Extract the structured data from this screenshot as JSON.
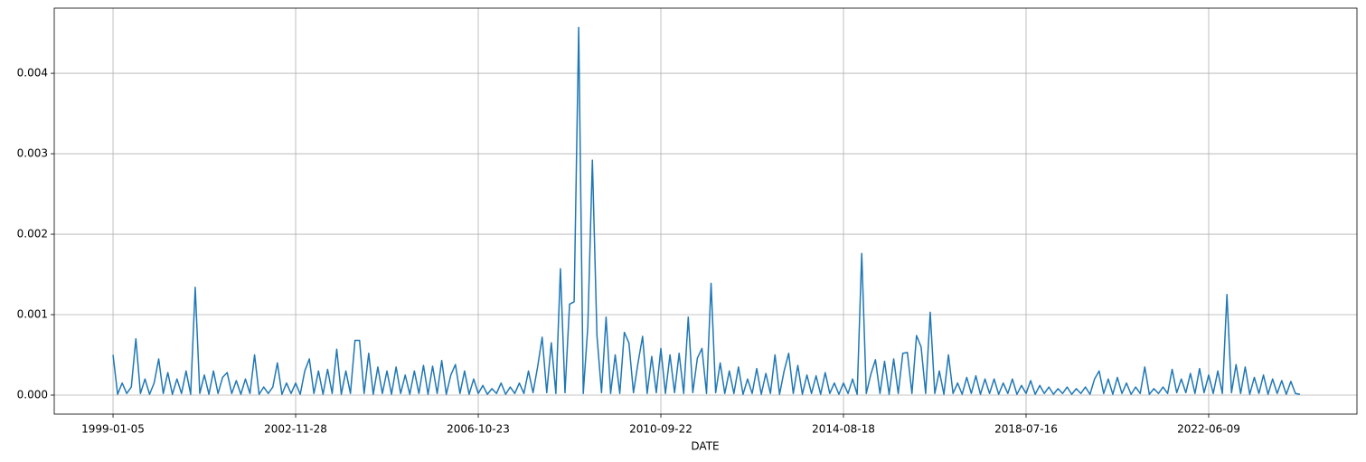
{
  "chart_data": {
    "type": "line",
    "xlabel": "DATE",
    "grid": true,
    "xlim": [
      -322,
      6812
    ],
    "ylim": [
      -0.000236,
      0.00481
    ],
    "xticks": [
      {
        "value": 0,
        "label": "1999-01-05"
      },
      {
        "value": 1000,
        "label": "2002-11-28"
      },
      {
        "value": 2000,
        "label": "2006-10-23"
      },
      {
        "value": 3000,
        "label": "2010-09-22"
      },
      {
        "value": 4000,
        "label": "2014-08-18"
      },
      {
        "value": 5000,
        "label": "2018-07-16"
      },
      {
        "value": 6000,
        "label": "2022-06-09"
      }
    ],
    "yticks": [
      {
        "value": 0,
        "label": "0.000"
      },
      {
        "value": 0.001,
        "label": "0.001"
      },
      {
        "value": 0.002,
        "label": "0.002"
      },
      {
        "value": 0.003,
        "label": "0.003"
      },
      {
        "value": 0.004,
        "label": "0.004"
      }
    ],
    "series": [
      {
        "color": "#1f77b4",
        "x": [
          0,
          25,
          50,
          75,
          100,
          125,
          150,
          175,
          200,
          225,
          250,
          275,
          300,
          325,
          350,
          375,
          400,
          425,
          450,
          475,
          500,
          525,
          550,
          575,
          600,
          625,
          650,
          675,
          700,
          725,
          750,
          775,
          800,
          825,
          850,
          875,
          900,
          925,
          950,
          975,
          1000,
          1025,
          1050,
          1075,
          1100,
          1125,
          1150,
          1175,
          1200,
          1225,
          1250,
          1275,
          1300,
          1325,
          1350,
          1375,
          1400,
          1425,
          1450,
          1475,
          1500,
          1525,
          1550,
          1575,
          1600,
          1625,
          1650,
          1675,
          1700,
          1725,
          1750,
          1775,
          1800,
          1825,
          1850,
          1875,
          1900,
          1925,
          1950,
          1975,
          2000,
          2025,
          2050,
          2075,
          2100,
          2125,
          2150,
          2175,
          2200,
          2225,
          2250,
          2275,
          2300,
          2325,
          2350,
          2375,
          2400,
          2425,
          2450,
          2475,
          2500,
          2525,
          2550,
          2575,
          2600,
          2625,
          2650,
          2675,
          2700,
          2725,
          2750,
          2775,
          2800,
          2825,
          2850,
          2875,
          2900,
          2925,
          2950,
          2975,
          3000,
          3025,
          3050,
          3075,
          3100,
          3125,
          3150,
          3175,
          3200,
          3225,
          3250,
          3275,
          3300,
          3325,
          3350,
          3375,
          3400,
          3425,
          3450,
          3475,
          3500,
          3525,
          3550,
          3575,
          3600,
          3625,
          3650,
          3675,
          3700,
          3725,
          3750,
          3775,
          3800,
          3825,
          3850,
          3875,
          3900,
          3925,
          3950,
          3975,
          4000,
          4025,
          4050,
          4075,
          4100,
          4125,
          4150,
          4175,
          4200,
          4225,
          4250,
          4275,
          4300,
          4325,
          4350,
          4375,
          4400,
          4425,
          4450,
          4475,
          4500,
          4525,
          4550,
          4575,
          4600,
          4625,
          4650,
          4675,
          4700,
          4725,
          4750,
          4775,
          4800,
          4825,
          4850,
          4875,
          4900,
          4925,
          4950,
          4975,
          5000,
          5025,
          5050,
          5075,
          5100,
          5125,
          5150,
          5175,
          5200,
          5225,
          5250,
          5275,
          5300,
          5325,
          5350,
          5375,
          5400,
          5425,
          5450,
          5475,
          5500,
          5525,
          5550,
          5575,
          5600,
          5625,
          5650,
          5675,
          5700,
          5725,
          5750,
          5775,
          5800,
          5825,
          5850,
          5875,
          5900,
          5925,
          5950,
          5975,
          6000,
          6025,
          6050,
          6075,
          6100,
          6125,
          6150,
          6175,
          6200,
          6225,
          6250,
          6275,
          6300,
          6325,
          6350,
          6375,
          6400,
          6425,
          6450,
          6475,
          6500
        ],
        "values": [
          0.0005,
          1e-05,
          0.00015,
          2e-05,
          0.0001,
          0.0007,
          2e-05,
          0.0002,
          1e-05,
          0.00015,
          0.00045,
          2e-05,
          0.00028,
          1e-05,
          0.0002,
          2e-05,
          0.0003,
          1e-05,
          0.00134,
          2e-05,
          0.00025,
          1e-05,
          0.0003,
          2e-05,
          0.00022,
          0.00028,
          2e-05,
          0.00018,
          1e-05,
          0.0002,
          2e-05,
          0.0005,
          1e-05,
          0.0001,
          2e-05,
          0.0001,
          0.0004,
          1e-05,
          0.00015,
          2e-05,
          0.00015,
          1e-05,
          0.0003,
          0.00045,
          2e-05,
          0.0003,
          1e-05,
          0.00032,
          2e-05,
          0.00057,
          1e-05,
          0.0003,
          2e-05,
          0.00068,
          0.00068,
          2e-05,
          0.00052,
          1e-05,
          0.00035,
          2e-05,
          0.0003,
          1e-05,
          0.00035,
          2e-05,
          0.00025,
          1e-05,
          0.0003,
          2e-05,
          0.00037,
          1e-05,
          0.00036,
          2e-05,
          0.00043,
          1e-05,
          0.00025,
          0.00038,
          2e-05,
          0.0003,
          1e-05,
          0.0002,
          2e-05,
          0.00012,
          1e-05,
          8e-05,
          2e-05,
          0.00015,
          1e-05,
          0.0001,
          2e-05,
          0.00015,
          2e-05,
          0.0003,
          3e-05,
          0.00035,
          0.00072,
          3e-05,
          0.00065,
          2e-05,
          0.00157,
          3e-05,
          0.00113,
          0.00116,
          0.00457,
          2e-05,
          0.00085,
          0.00292,
          0.00074,
          3e-05,
          0.00097,
          2e-05,
          0.0005,
          2e-05,
          0.00078,
          0.00065,
          3e-05,
          0.0004,
          0.00073,
          2e-05,
          0.00048,
          3e-05,
          0.00058,
          2e-05,
          0.0005,
          3e-05,
          0.00052,
          2e-05,
          0.00097,
          3e-05,
          0.00046,
          0.00058,
          2e-05,
          0.00139,
          3e-05,
          0.0004,
          2e-05,
          0.0003,
          2e-05,
          0.00035,
          1e-05,
          0.0002,
          2e-05,
          0.00033,
          1e-05,
          0.00027,
          2e-05,
          0.0005,
          1e-05,
          0.0003,
          0.00052,
          2e-05,
          0.00037,
          1e-05,
          0.00025,
          2e-05,
          0.00024,
          1e-05,
          0.00028,
          2e-05,
          0.00015,
          1e-05,
          0.00015,
          2e-05,
          0.0002,
          1e-05,
          0.00176,
          2e-05,
          0.00026,
          0.00044,
          2e-05,
          0.00042,
          1e-05,
          0.00045,
          2e-05,
          0.00052,
          0.00053,
          2e-05,
          0.00074,
          0.0006,
          2e-05,
          0.00103,
          2e-05,
          0.0003,
          1e-05,
          0.0005,
          2e-05,
          0.00015,
          1e-05,
          0.00022,
          2e-05,
          0.00024,
          1e-05,
          0.0002,
          2e-05,
          0.0002,
          1e-05,
          0.00015,
          2e-05,
          0.0002,
          1e-05,
          0.00012,
          2e-05,
          0.00018,
          1e-05,
          0.00012,
          2e-05,
          0.0001,
          1e-05,
          8e-05,
          2e-05,
          0.0001,
          1e-05,
          8e-05,
          2e-05,
          0.0001,
          1e-05,
          0.0002,
          0.0003,
          2e-05,
          0.0002,
          1e-05,
          0.00022,
          2e-05,
          0.00015,
          1e-05,
          0.0001,
          2e-05,
          0.00035,
          1e-05,
          8e-05,
          2e-05,
          0.0001,
          2e-05,
          0.00032,
          3e-05,
          0.0002,
          3e-05,
          0.00027,
          2e-05,
          0.00033,
          3e-05,
          0.00025,
          2e-05,
          0.0003,
          2e-05,
          0.00125,
          3e-05,
          0.00038,
          2e-05,
          0.00035,
          1e-05,
          0.00022,
          2e-05,
          0.00025,
          1e-05,
          0.0002,
          2e-05,
          0.00018,
          1e-05,
          0.00017,
          2e-05,
          1e-05
        ]
      }
    ]
  }
}
